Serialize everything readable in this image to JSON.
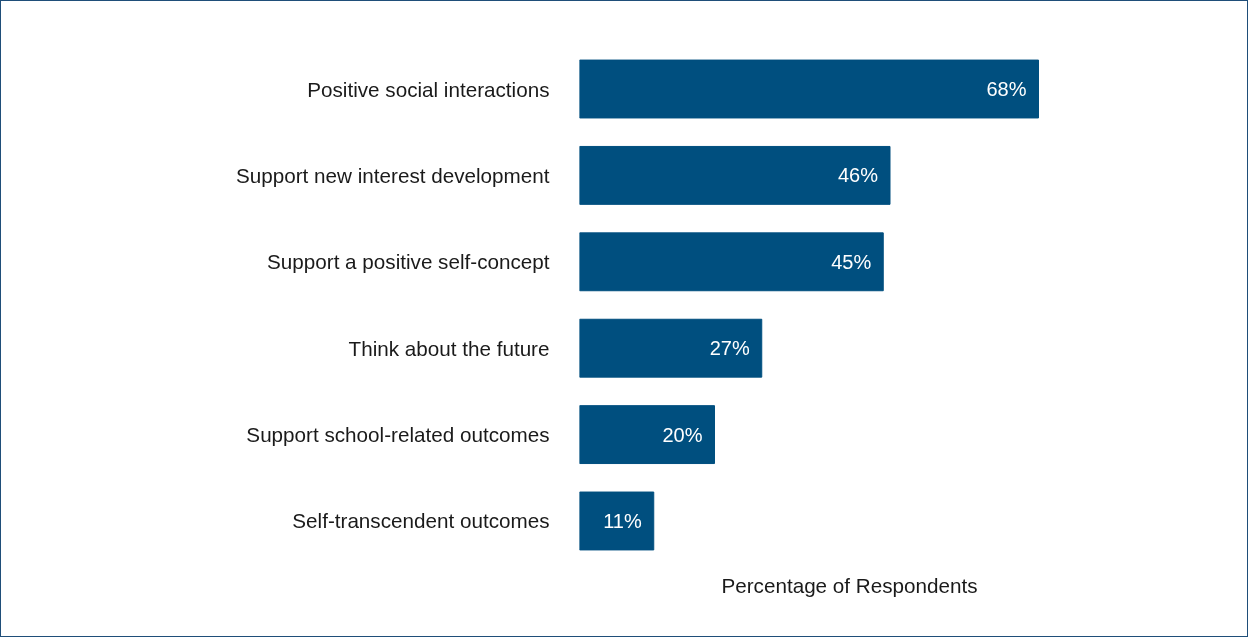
{
  "chart_data": {
    "type": "bar",
    "orientation": "horizontal",
    "xlabel": "Percentage of Respondents",
    "categories": [
      "Positive social interactions",
      "Support new interest development",
      "Support a positive self-concept",
      "Think about the future",
      "Support school-related outcomes",
      "Self-transcendent outcomes"
    ],
    "values": [
      68,
      46,
      45,
      27,
      20,
      11
    ],
    "value_labels": [
      "68%",
      "46%",
      "45%",
      "27%",
      "20%",
      "11%"
    ],
    "color": "#004f7f",
    "tick_labels": "y"
  }
}
